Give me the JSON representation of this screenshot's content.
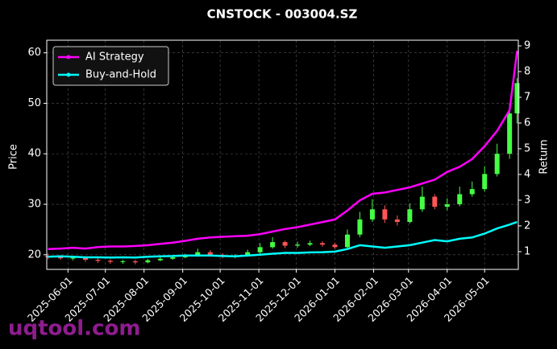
{
  "chart_data": {
    "type": "candlestick",
    "title": "CNSTOCK - 003004.SZ",
    "ylabel": "Price",
    "y2label": "Return",
    "watermark": "uqtool.com",
    "x": [
      "2025-05-16",
      "2025-05-26",
      "2025-06-05",
      "2025-06-15",
      "2025-06-25",
      "2025-07-05",
      "2025-07-15",
      "2025-07-25",
      "2025-08-04",
      "2025-08-14",
      "2025-08-24",
      "2025-09-03",
      "2025-09-13",
      "2025-09-23",
      "2025-10-03",
      "2025-10-13",
      "2025-10-23",
      "2025-11-02",
      "2025-11-12",
      "2025-11-22",
      "2025-12-02",
      "2025-12-12",
      "2025-12-22",
      "2026-01-01",
      "2026-01-11",
      "2026-01-21",
      "2026-01-31",
      "2026-02-10",
      "2026-02-20",
      "2026-03-02",
      "2026-03-12",
      "2026-03-22",
      "2026-04-01",
      "2026-04-11",
      "2026-04-21",
      "2026-05-01",
      "2026-05-11",
      "2026-05-21",
      "2026-05-27"
    ],
    "open": [
      19.8,
      19.5,
      19.3,
      19.4,
      19.0,
      18.8,
      18.6,
      18.7,
      18.5,
      18.9,
      19.2,
      19.5,
      19.8,
      20.5,
      20.0,
      19.6,
      19.8,
      20.5,
      21.5,
      22.5,
      21.8,
      22.0,
      22.3,
      22.0,
      21.5,
      24,
      27,
      29,
      27,
      26.5,
      29,
      31.5,
      29.5,
      30,
      32,
      33,
      36,
      40,
      48
    ],
    "high": [
      20.2,
      19.9,
      19.8,
      19.7,
      19.3,
      19.1,
      19.0,
      19.0,
      19.2,
      19.5,
      19.8,
      20.2,
      21.2,
      20.9,
      20.3,
      20.1,
      21.0,
      22.3,
      23.5,
      22.8,
      22.6,
      22.8,
      22.7,
      22.4,
      25,
      28.5,
      31,
      29.8,
      27.8,
      30.2,
      33.5,
      32,
      31.2,
      33.5,
      34.5,
      37.5,
      42,
      50,
      55
    ],
    "low": [
      19.1,
      19.0,
      18.9,
      18.6,
      18.4,
      18.2,
      18.2,
      18.1,
      18.3,
      18.7,
      19.0,
      19.3,
      19.6,
      19.7,
      19.3,
      19.3,
      19.6,
      20.2,
      21.2,
      21.3,
      21.4,
      21.7,
      21.6,
      21.2,
      21.3,
      23.5,
      26.5,
      26.3,
      25.8,
      26.2,
      28.5,
      29,
      28.8,
      29.6,
      31.5,
      32.5,
      35.5,
      39,
      46
    ],
    "close": [
      19.5,
      19.3,
      19.4,
      19.0,
      18.8,
      18.6,
      18.7,
      18.5,
      18.9,
      19.2,
      19.5,
      19.8,
      20.5,
      20.0,
      19.6,
      19.8,
      20.5,
      21.5,
      22.5,
      21.8,
      22.0,
      22.3,
      22.0,
      21.5,
      24,
      27,
      29,
      27,
      26.5,
      29,
      31.5,
      29.5,
      30,
      32,
      33,
      36,
      40,
      48,
      54
    ],
    "up_color": "#44ff44",
    "down_color": "#ff5555",
    "series": [
      {
        "name": "AI Strategy",
        "color": "#ff00ff",
        "axis": "y2",
        "values": [
          1.1,
          1.12,
          1.15,
          1.12,
          1.18,
          1.2,
          1.2,
          1.22,
          1.25,
          1.3,
          1.35,
          1.42,
          1.5,
          1.55,
          1.58,
          1.6,
          1.62,
          1.68,
          1.78,
          1.88,
          1.95,
          2.05,
          2.15,
          2.25,
          2.6,
          3.0,
          3.25,
          3.3,
          3.4,
          3.5,
          3.65,
          3.8,
          4.1,
          4.3,
          4.6,
          5.1,
          5.7,
          6.5,
          8.8
        ]
      },
      {
        "name": "Buy-and-Hold",
        "color": "#00ffff",
        "axis": "y2",
        "values": [
          0.8,
          0.82,
          0.8,
          0.78,
          0.78,
          0.77,
          0.78,
          0.77,
          0.8,
          0.82,
          0.83,
          0.85,
          0.85,
          0.85,
          0.83,
          0.82,
          0.85,
          0.88,
          0.92,
          0.95,
          0.95,
          0.97,
          0.98,
          1.0,
          1.1,
          1.25,
          1.2,
          1.15,
          1.2,
          1.25,
          1.35,
          1.45,
          1.4,
          1.5,
          1.55,
          1.7,
          1.9,
          2.05,
          2.15
        ]
      }
    ],
    "xlim": [
      "2025-05-15",
      "2026-05-28"
    ],
    "xticks": [
      "2025-06-01",
      "2025-07-01",
      "2025-08-01",
      "2025-09-01",
      "2025-10-01",
      "2025-11-01",
      "2025-12-01",
      "2026-01-01",
      "2026-02-01",
      "2026-03-01",
      "2026-04-01",
      "2026-05-01"
    ],
    "ylim": [
      17.1,
      62.5
    ],
    "yticks": [
      20,
      30,
      40,
      50,
      60
    ],
    "y2lim": [
      0.31,
      9.22
    ],
    "y2ticks": [
      1,
      2,
      3,
      4,
      5,
      6,
      7,
      8,
      9
    ],
    "grid": true,
    "legend": "upper left"
  }
}
